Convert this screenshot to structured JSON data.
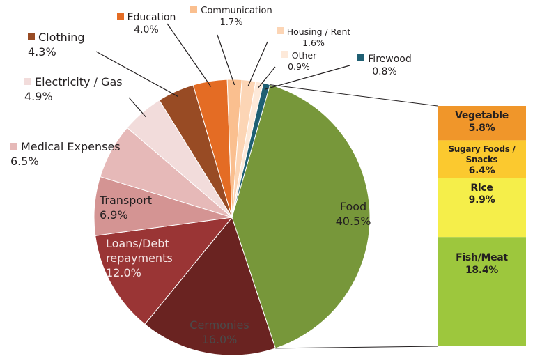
{
  "chart_data": [
    {
      "type": "pie",
      "categories": [
        "Food",
        "Cermonies",
        "Loans/Debt repayments",
        "Transport",
        "Medical Expenses",
        "Electricity / Gas",
        "Clothing",
        "Education",
        "Communication",
        "Housing / Rent",
        "Other",
        "Firewood"
      ],
      "values": [
        40.5,
        16.0,
        12.0,
        6.9,
        6.5,
        4.9,
        4.3,
        4.0,
        1.7,
        1.6,
        0.9,
        0.8
      ],
      "value_labels": [
        "40.5%",
        "16.0%",
        "12.0%",
        "6.9%",
        "6.5%",
        "4.9%",
        "4.3%",
        "4.0%",
        "1.7%",
        "1.6%",
        "0.9%",
        "0.8%"
      ],
      "colors": [
        "#77973a",
        "#6a2321",
        "#9a3535",
        "#d49493",
        "#e6b9b8",
        "#f2dcdb",
        "#984b24",
        "#e46c24",
        "#fabf8f",
        "#fcd5b5",
        "#fde9d9",
        "#1f5f73"
      ]
    },
    {
      "type": "bar",
      "categories": [
        "Vegetable",
        "Sugary Foods / Snacks",
        "Rice",
        "Fish/Meat"
      ],
      "values": [
        5.8,
        6.4,
        9.9,
        18.4
      ],
      "value_labels": [
        "5.8%",
        "6.4%",
        "9.9%",
        "18.4%"
      ],
      "colors": [
        "#f0962a",
        "#fbc92f",
        "#f5ee4a",
        "#9dc73d"
      ]
    }
  ]
}
